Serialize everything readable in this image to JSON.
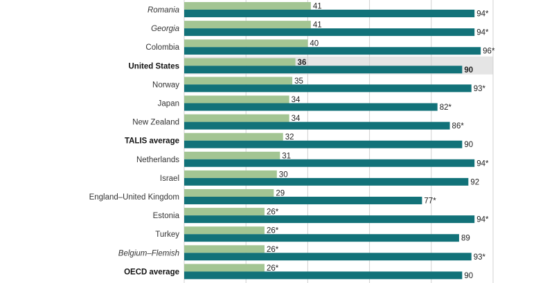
{
  "chart_data": {
    "type": "bar",
    "orientation": "horizontal",
    "xlim": [
      0,
      100
    ],
    "grid": true,
    "highlight_category": "United States",
    "colors": {
      "series1": "#a3c593",
      "series2": "#127279",
      "highlight_band": "#e5e5e5",
      "grid": "#d0d0d0"
    },
    "categories": [
      {
        "label": "Romania",
        "style": "italic"
      },
      {
        "label": "Georgia",
        "style": "italic"
      },
      {
        "label": "Colombia",
        "style": "normal"
      },
      {
        "label": "United States",
        "style": "bold"
      },
      {
        "label": "Norway",
        "style": "normal"
      },
      {
        "label": "Japan",
        "style": "normal"
      },
      {
        "label": "New Zealand",
        "style": "normal"
      },
      {
        "label": "TALIS average",
        "style": "bold"
      },
      {
        "label": "Netherlands",
        "style": "normal"
      },
      {
        "label": "Israel",
        "style": "normal"
      },
      {
        "label": "England–United Kingdom",
        "style": "normal"
      },
      {
        "label": "Estonia",
        "style": "normal"
      },
      {
        "label": "Turkey",
        "style": "normal"
      },
      {
        "label": "Belgium–Flemish",
        "style": "italic"
      },
      {
        "label": "OECD average",
        "style": "bold"
      }
    ],
    "series": [
      {
        "values": [
          41,
          41,
          40,
          36,
          35,
          34,
          34,
          32,
          31,
          30,
          29,
          26,
          26,
          26,
          26
        ],
        "labels": [
          "41",
          "41",
          "40",
          "36",
          "35",
          "34",
          "34",
          "32",
          "31",
          "30",
          "29",
          "26*",
          "26*",
          "26*",
          "26*"
        ]
      },
      {
        "values": [
          94,
          94,
          96,
          90,
          93,
          82,
          86,
          90,
          94,
          92,
          77,
          94,
          89,
          93,
          90
        ],
        "labels": [
          "94*",
          "94*",
          "96*",
          "90",
          "93*",
          "82*",
          "86*",
          "90",
          "94*",
          "92",
          "77*",
          "94*",
          "89",
          "93*",
          "90"
        ]
      }
    ]
  }
}
